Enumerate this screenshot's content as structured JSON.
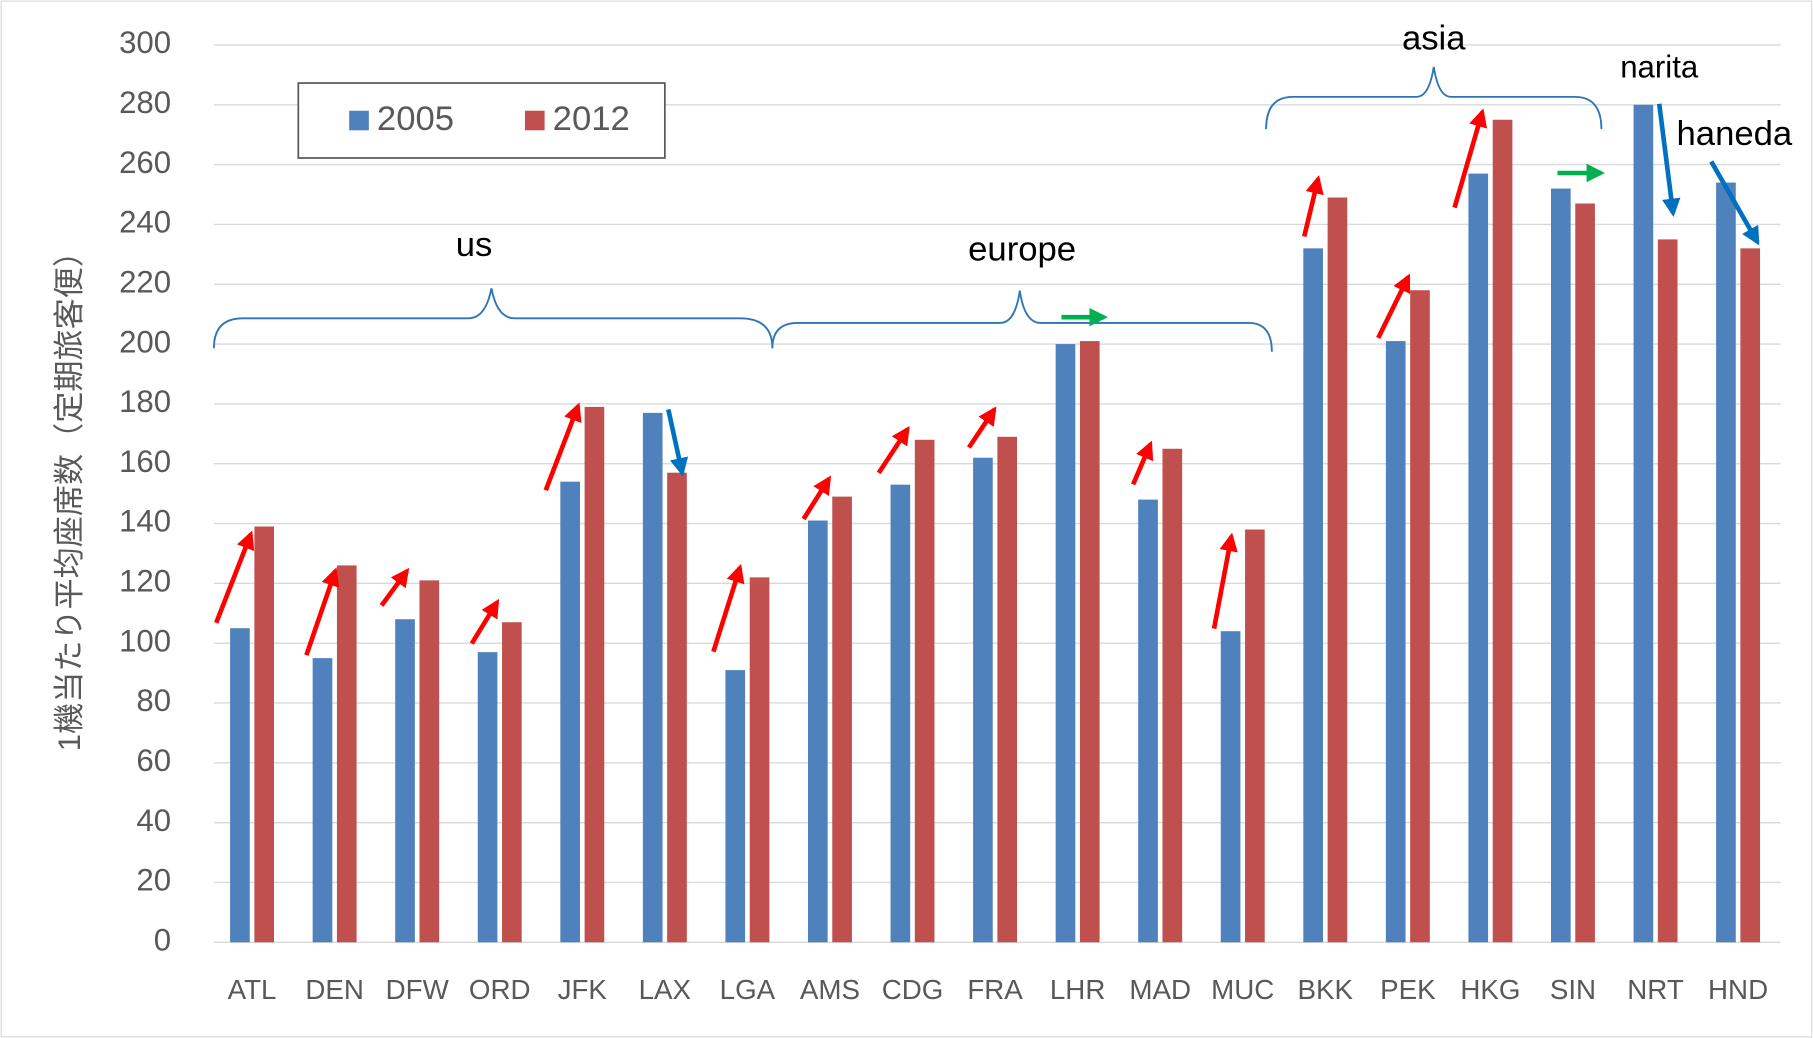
{
  "chart_data": {
    "type": "bar",
    "ylabel": "1機当たり平均座席数（定期旅客便）",
    "categories": [
      "ATL",
      "DEN",
      "DFW",
      "ORD",
      "JFK",
      "LAX",
      "LGA",
      "AMS",
      "CDG",
      "FRA",
      "LHR",
      "MAD",
      "MUC",
      "BKK",
      "PEK",
      "HKG",
      "SIN",
      "NRT",
      "HND"
    ],
    "series": [
      {
        "name": "2005",
        "color": "#4f81bd",
        "values": [
          105,
          95,
          108,
          97,
          154,
          177,
          91,
          141,
          153,
          162,
          200,
          148,
          104,
          232,
          201,
          257,
          252,
          280,
          254
        ]
      },
      {
        "name": "2012",
        "color": "#c0504d",
        "values": [
          139,
          126,
          121,
          107,
          179,
          157,
          122,
          149,
          168,
          169,
          201,
          165,
          138,
          249,
          218,
          275,
          247,
          235,
          232
        ]
      }
    ],
    "ylim": [
      0,
      300
    ],
    "yticks": [
      0,
      20,
      40,
      60,
      80,
      100,
      120,
      140,
      160,
      180,
      200,
      220,
      240,
      260,
      280,
      300
    ],
    "grid": true,
    "annotations": [
      "us",
      "europe",
      "asia",
      "narita",
      "haneda"
    ]
  }
}
